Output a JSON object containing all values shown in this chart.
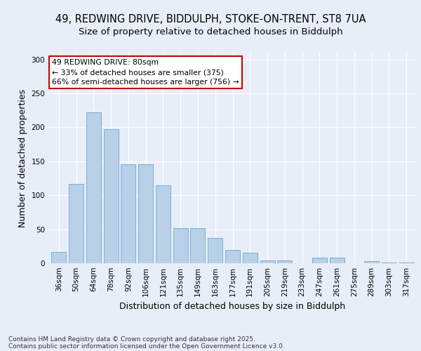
{
  "title1": "49, REDWING DRIVE, BIDDULPH, STOKE-ON-TRENT, ST8 7UA",
  "title2": "Size of property relative to detached houses in Biddulph",
  "xlabel": "Distribution of detached houses by size in Biddulph",
  "ylabel": "Number of detached properties",
  "categories": [
    "36sqm",
    "50sqm",
    "64sqm",
    "78sqm",
    "92sqm",
    "106sqm",
    "121sqm",
    "135sqm",
    "149sqm",
    "163sqm",
    "177sqm",
    "191sqm",
    "205sqm",
    "219sqm",
    "233sqm",
    "247sqm",
    "261sqm",
    "275sqm",
    "289sqm",
    "303sqm",
    "317sqm"
  ],
  "values": [
    17,
    117,
    222,
    197,
    146,
    146,
    115,
    52,
    52,
    37,
    20,
    15,
    4,
    4,
    0,
    8,
    8,
    0,
    3,
    1,
    1
  ],
  "bar_color": "#b8d0e8",
  "bar_edge_color": "#7aafd4",
  "annotation_text_line1": "49 REDWING DRIVE: 80sqm",
  "annotation_text_line2": "← 33% of detached houses are smaller (375)",
  "annotation_text_line3": "66% of semi-detached houses are larger (756) →",
  "annotation_box_color": "#ffffff",
  "annotation_box_edge": "#cc0000",
  "ylim": [
    0,
    310
  ],
  "yticks": [
    0,
    50,
    100,
    150,
    200,
    250,
    300
  ],
  "background_color": "#e8eef8",
  "plot_bg_color": "#e8eef8",
  "footer_line1": "Contains HM Land Registry data © Crown copyright and database right 2025.",
  "footer_line2": "Contains public sector information licensed under the Open Government Licence v3.0.",
  "title_fontsize": 10.5,
  "subtitle_fontsize": 9.5,
  "axis_label_fontsize": 9,
  "tick_fontsize": 7.5,
  "footer_fontsize": 6.5
}
